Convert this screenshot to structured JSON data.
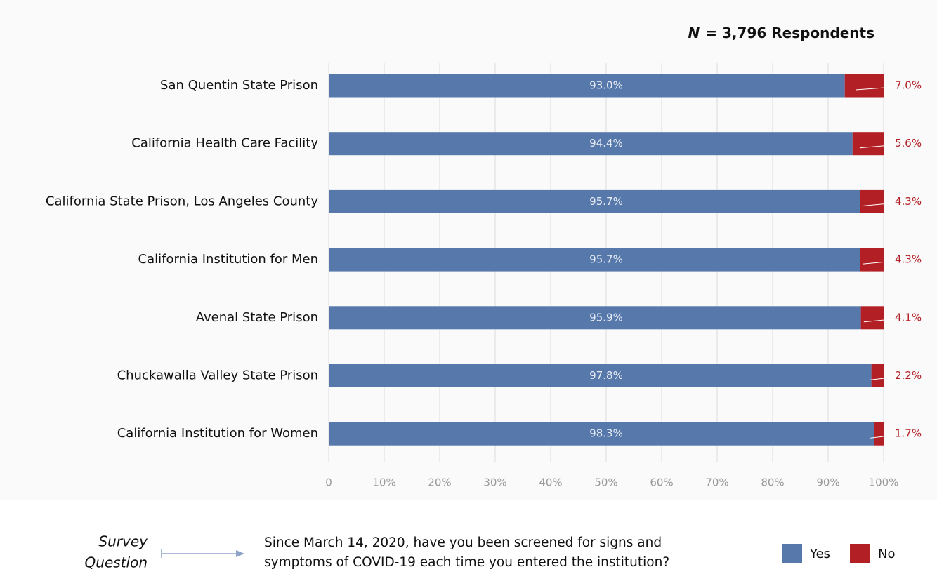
{
  "chart_data": {
    "type": "stacked_barh",
    "note_var": "N",
    "note": "= 3,796 Respondents",
    "categories": [
      "San Quentin State Prison",
      "California Health Care Facility",
      "California State Prison, Los Angeles County",
      "California Institution for Men",
      "Avenal State Prison",
      "Chuckawalla Valley State Prison",
      "California Institution for Women"
    ],
    "series": [
      {
        "name": "Yes",
        "color": "#5678ab",
        "values": [
          93.0,
          94.4,
          95.7,
          95.7,
          95.9,
          97.8,
          98.3
        ],
        "value_labels": [
          "93.0%",
          "94.4%",
          "95.7%",
          "95.7%",
          "95.9%",
          "97.8%",
          "98.3%"
        ]
      },
      {
        "name": "No",
        "color": "#b22025",
        "values": [
          7.0,
          5.6,
          4.3,
          4.3,
          4.1,
          2.2,
          1.7
        ],
        "value_labels": [
          "7.0%",
          "5.6%",
          "4.3%",
          "4.3%",
          "4.1%",
          "2.2%",
          "1.7%"
        ]
      }
    ],
    "xlim": [
      0,
      100
    ],
    "xticks": [
      0,
      {
        "value": 10,
        "label": "10%"
      },
      {
        "value": 20,
        "label": "20%"
      },
      {
        "value": 30,
        "label": "30%"
      },
      {
        "value": 40,
        "label": "40%"
      },
      {
        "value": 50,
        "label": "50%"
      },
      {
        "value": 60,
        "label": "60%"
      },
      {
        "value": 70,
        "label": "70%"
      },
      {
        "value": 80,
        "label": "80%"
      },
      {
        "value": 90,
        "label": "90%"
      },
      {
        "value": 100,
        "label": "100%"
      }
    ],
    "grid": true,
    "survey_label": [
      "Survey",
      "Question"
    ],
    "question": [
      "Since March 14, 2020, have you been screened for signs and",
      "symptoms of COVID-19 each time you entered the institution?"
    ]
  }
}
